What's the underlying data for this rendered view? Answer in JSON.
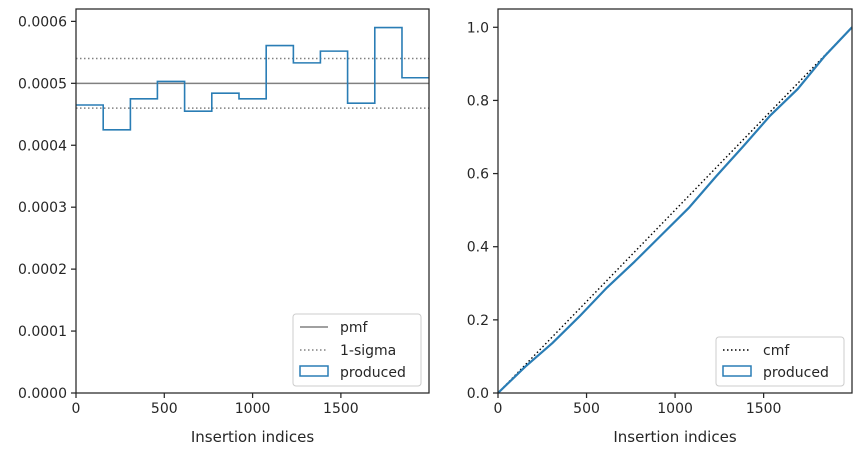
{
  "chart_data": [
    {
      "type": "line",
      "xlabel": "Insertion indices",
      "ylabel": "",
      "xlim": [
        0,
        1999
      ],
      "ylim": [
        0,
        0.00062
      ],
      "xticks": [
        0,
        500,
        1000,
        1500
      ],
      "xtick_labels": [
        "0",
        "500",
        "1000",
        "1500"
      ],
      "yticks": [
        0,
        0.0001,
        0.0002,
        0.0003,
        0.0004,
        0.0005,
        0.0006
      ],
      "ytick_labels": [
        "0.0000",
        "0.0001",
        "0.0002",
        "0.0003",
        "0.0004",
        "0.0005",
        "0.0006"
      ],
      "grid": false,
      "legend_position": "lower-right",
      "lines": [
        {
          "name": "pmf",
          "style": "solid",
          "color": "#808080",
          "y": 0.0005
        },
        {
          "name": "1-sigma",
          "style": "dotted",
          "color": "#808080",
          "y": [
            0.00046,
            0.00054
          ]
        }
      ],
      "steps": {
        "name": "produced",
        "color": "#2a7db5",
        "bin_edges": [
          0,
          154,
          308,
          461,
          615,
          769,
          923,
          1077,
          1231,
          1384,
          1538,
          1692,
          1846,
          1999
        ],
        "values": [
          0.000465,
          0.000425,
          0.000475,
          0.000503,
          0.000455,
          0.000484,
          0.000475,
          0.000561,
          0.000533,
          0.000552,
          0.000468,
          0.00059,
          0.000509
        ]
      }
    },
    {
      "type": "line",
      "xlabel": "Insertion indices",
      "ylabel": "",
      "xlim": [
        0,
        1999
      ],
      "ylim": [
        0,
        1.05
      ],
      "xticks": [
        0,
        500,
        1000,
        1500
      ],
      "xtick_labels": [
        "0",
        "500",
        "1000",
        "1500"
      ],
      "yticks": [
        0,
        0.2,
        0.4,
        0.6,
        0.8,
        1.0
      ],
      "ytick_labels": [
        "0.0",
        "0.2",
        "0.4",
        "0.6",
        "0.8",
        "1.0"
      ],
      "grid": false,
      "legend_position": "lower-right",
      "series": [
        {
          "name": "cmf",
          "style": "dotted",
          "color": "#000000",
          "x": [
            0,
            1999
          ],
          "y": [
            0,
            1.0
          ]
        },
        {
          "name": "produced",
          "style": "solid",
          "color": "#2a7db5",
          "x": [
            0,
            154,
            308,
            461,
            615,
            769,
            923,
            1077,
            1231,
            1384,
            1538,
            1692,
            1846,
            1999
          ],
          "y": [
            0,
            0.072,
            0.137,
            0.21,
            0.288,
            0.358,
            0.432,
            0.506,
            0.592,
            0.674,
            0.759,
            0.831,
            0.922,
            1.0
          ]
        }
      ]
    }
  ]
}
